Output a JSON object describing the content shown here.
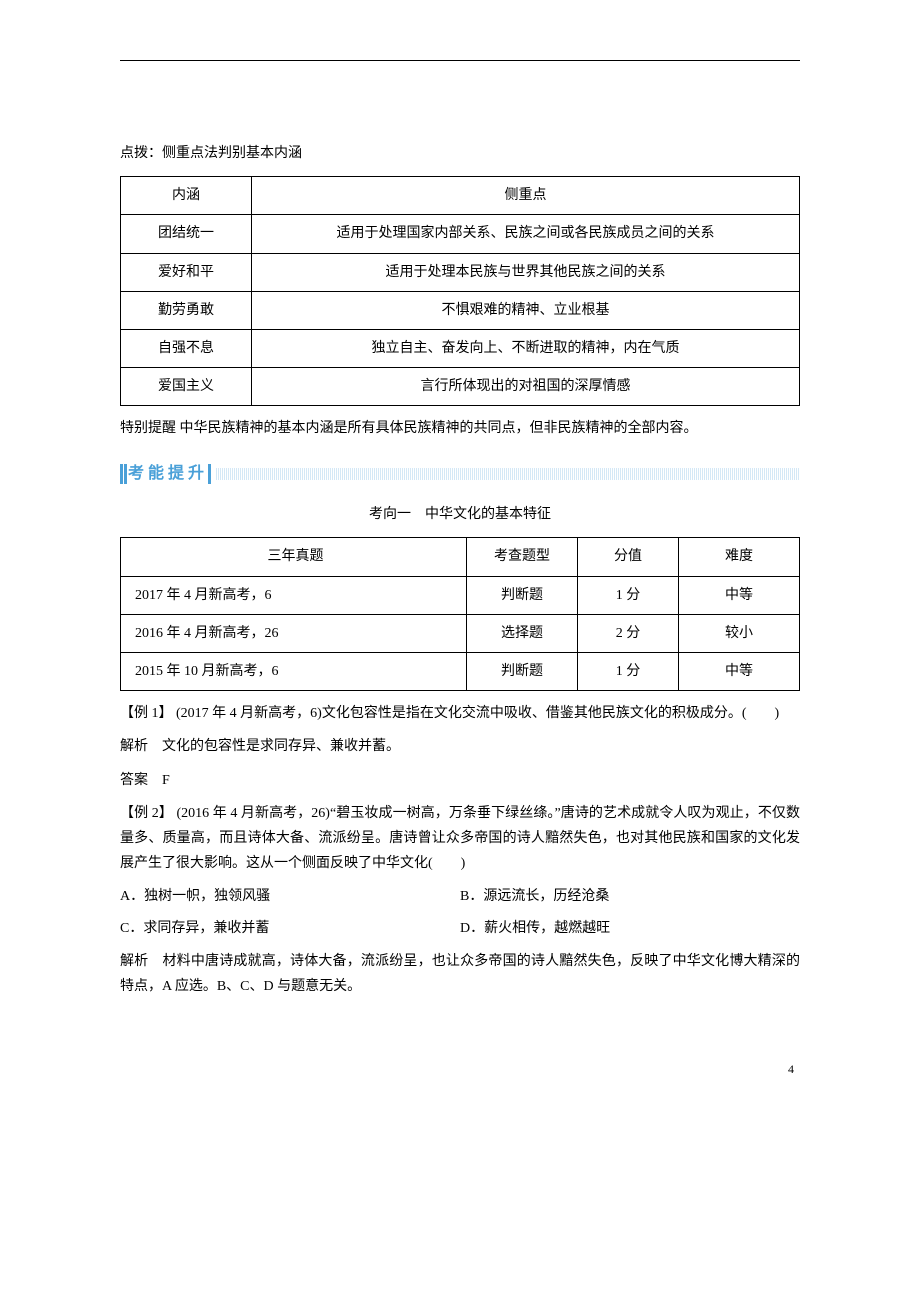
{
  "tip_line": "点拨：侧重点法判别基本内涵",
  "table1": {
    "headers": [
      "内涵",
      "侧重点"
    ],
    "rows": [
      [
        "团结统一",
        "适用于处理国家内部关系、民族之间或各民族成员之间的关系"
      ],
      [
        "爱好和平",
        "适用于处理本民族与世界其他民族之间的关系"
      ],
      [
        "勤劳勇敢",
        "不惧艰难的精神、立业根基"
      ],
      [
        "自强不息",
        "独立自主、奋发向上、不断进取的精神，内在气质"
      ],
      [
        "爱国主义",
        "言行所体现出的对祖国的深厚情感"
      ]
    ]
  },
  "note": "特别提醒 中华民族精神的基本内涵是所有具体民族精神的共同点，但非民族精神的全部内容。",
  "section_title": "考能提升",
  "direction_title": "考向一　中华文化的基本特征",
  "table2": {
    "headers": [
      "三年真题",
      "考查题型",
      "分值",
      "难度"
    ],
    "rows": [
      [
        "2017 年 4 月新高考，6",
        "判断题",
        "1 分",
        "中等"
      ],
      [
        "2016 年 4 月新高考，26",
        "选择题",
        "2 分",
        "较小"
      ],
      [
        "2015 年 10 月新高考，6",
        "判断题",
        "1 分",
        "中等"
      ]
    ]
  },
  "ex1": {
    "stem": "【例 1】 (2017 年 4 月新高考，6)文化包容性是指在文化交流中吸收、借鉴其他民族文化的积极成分。(　　)",
    "analysis": "解析　文化的包容性是求同存异、兼收并蓄。",
    "answer": "答案　F"
  },
  "ex2": {
    "stem": "【例 2】 (2016 年 4 月新高考，26)“碧玉妆成一树高，万条垂下绿丝绦。”唐诗的艺术成就令人叹为观止，不仅数量多、质量高，而且诗体大备、流派纷呈。唐诗曾让众多帝国的诗人黯然失色，也对其他民族和国家的文化发展产生了很大影响。这从一个侧面反映了中华文化(　　)",
    "optA": "A．独树一帜，独领风骚",
    "optB": "B．源远流长，历经沧桑",
    "optC": "C．求同存异，兼收并蓄",
    "optD": "D．薪火相传，越燃越旺",
    "analysis": "解析　材料中唐诗成就高，诗体大备，流派纷呈，也让众多帝国的诗人黯然失色，反映了中华文化博大精深的特点，A 应选。B、C、D 与题意无关。"
  },
  "page_number": "4"
}
